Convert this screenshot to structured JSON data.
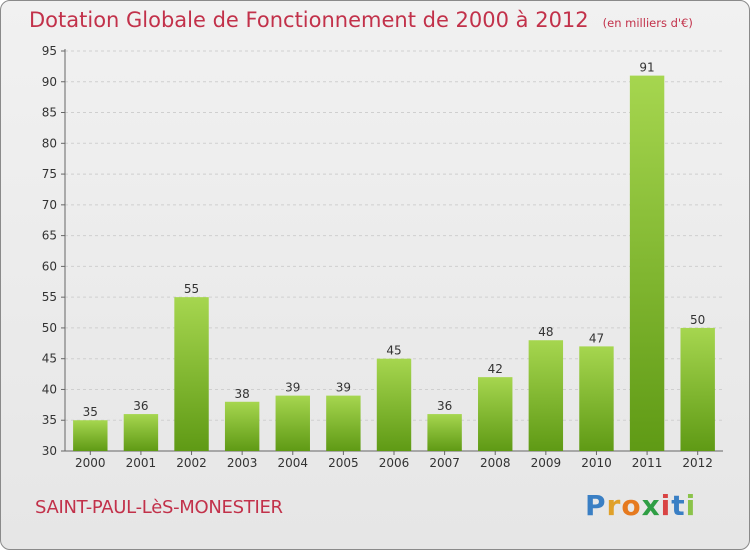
{
  "header": {
    "title": "Dotation Globale de Fonctionnement de 2000 à 2012",
    "unit": "(en milliers d'€)"
  },
  "footer": {
    "commune": "SAINT-PAUL-LèS-MONESTIER",
    "logo": [
      "P",
      "r",
      "o",
      "x",
      "i",
      "t",
      "i"
    ]
  },
  "colors": {
    "title": "#c2314a",
    "bar_light": "#a6d64f",
    "bar_dark": "#5f9a15",
    "logo": [
      "#3a7fc4",
      "#e0a12a",
      "#e67a1f",
      "#2f9e44",
      "#d94444",
      "#3a7fc4",
      "#8bc34a"
    ]
  },
  "chart_data": {
    "type": "bar",
    "title": "Dotation Globale de Fonctionnement de 2000 à 2012",
    "ylabel": "",
    "xlabel": "",
    "categories": [
      "2000",
      "2001",
      "2002",
      "2003",
      "2004",
      "2005",
      "2006",
      "2007",
      "2008",
      "2009",
      "2010",
      "2011",
      "2012"
    ],
    "values": [
      35,
      36,
      55,
      38,
      39,
      39,
      45,
      36,
      42,
      48,
      47,
      91,
      50
    ],
    "ylim": [
      30,
      95
    ],
    "yticks": [
      30,
      35,
      40,
      45,
      50,
      55,
      60,
      65,
      70,
      75,
      80,
      85,
      90,
      95
    ],
    "grid": true
  }
}
